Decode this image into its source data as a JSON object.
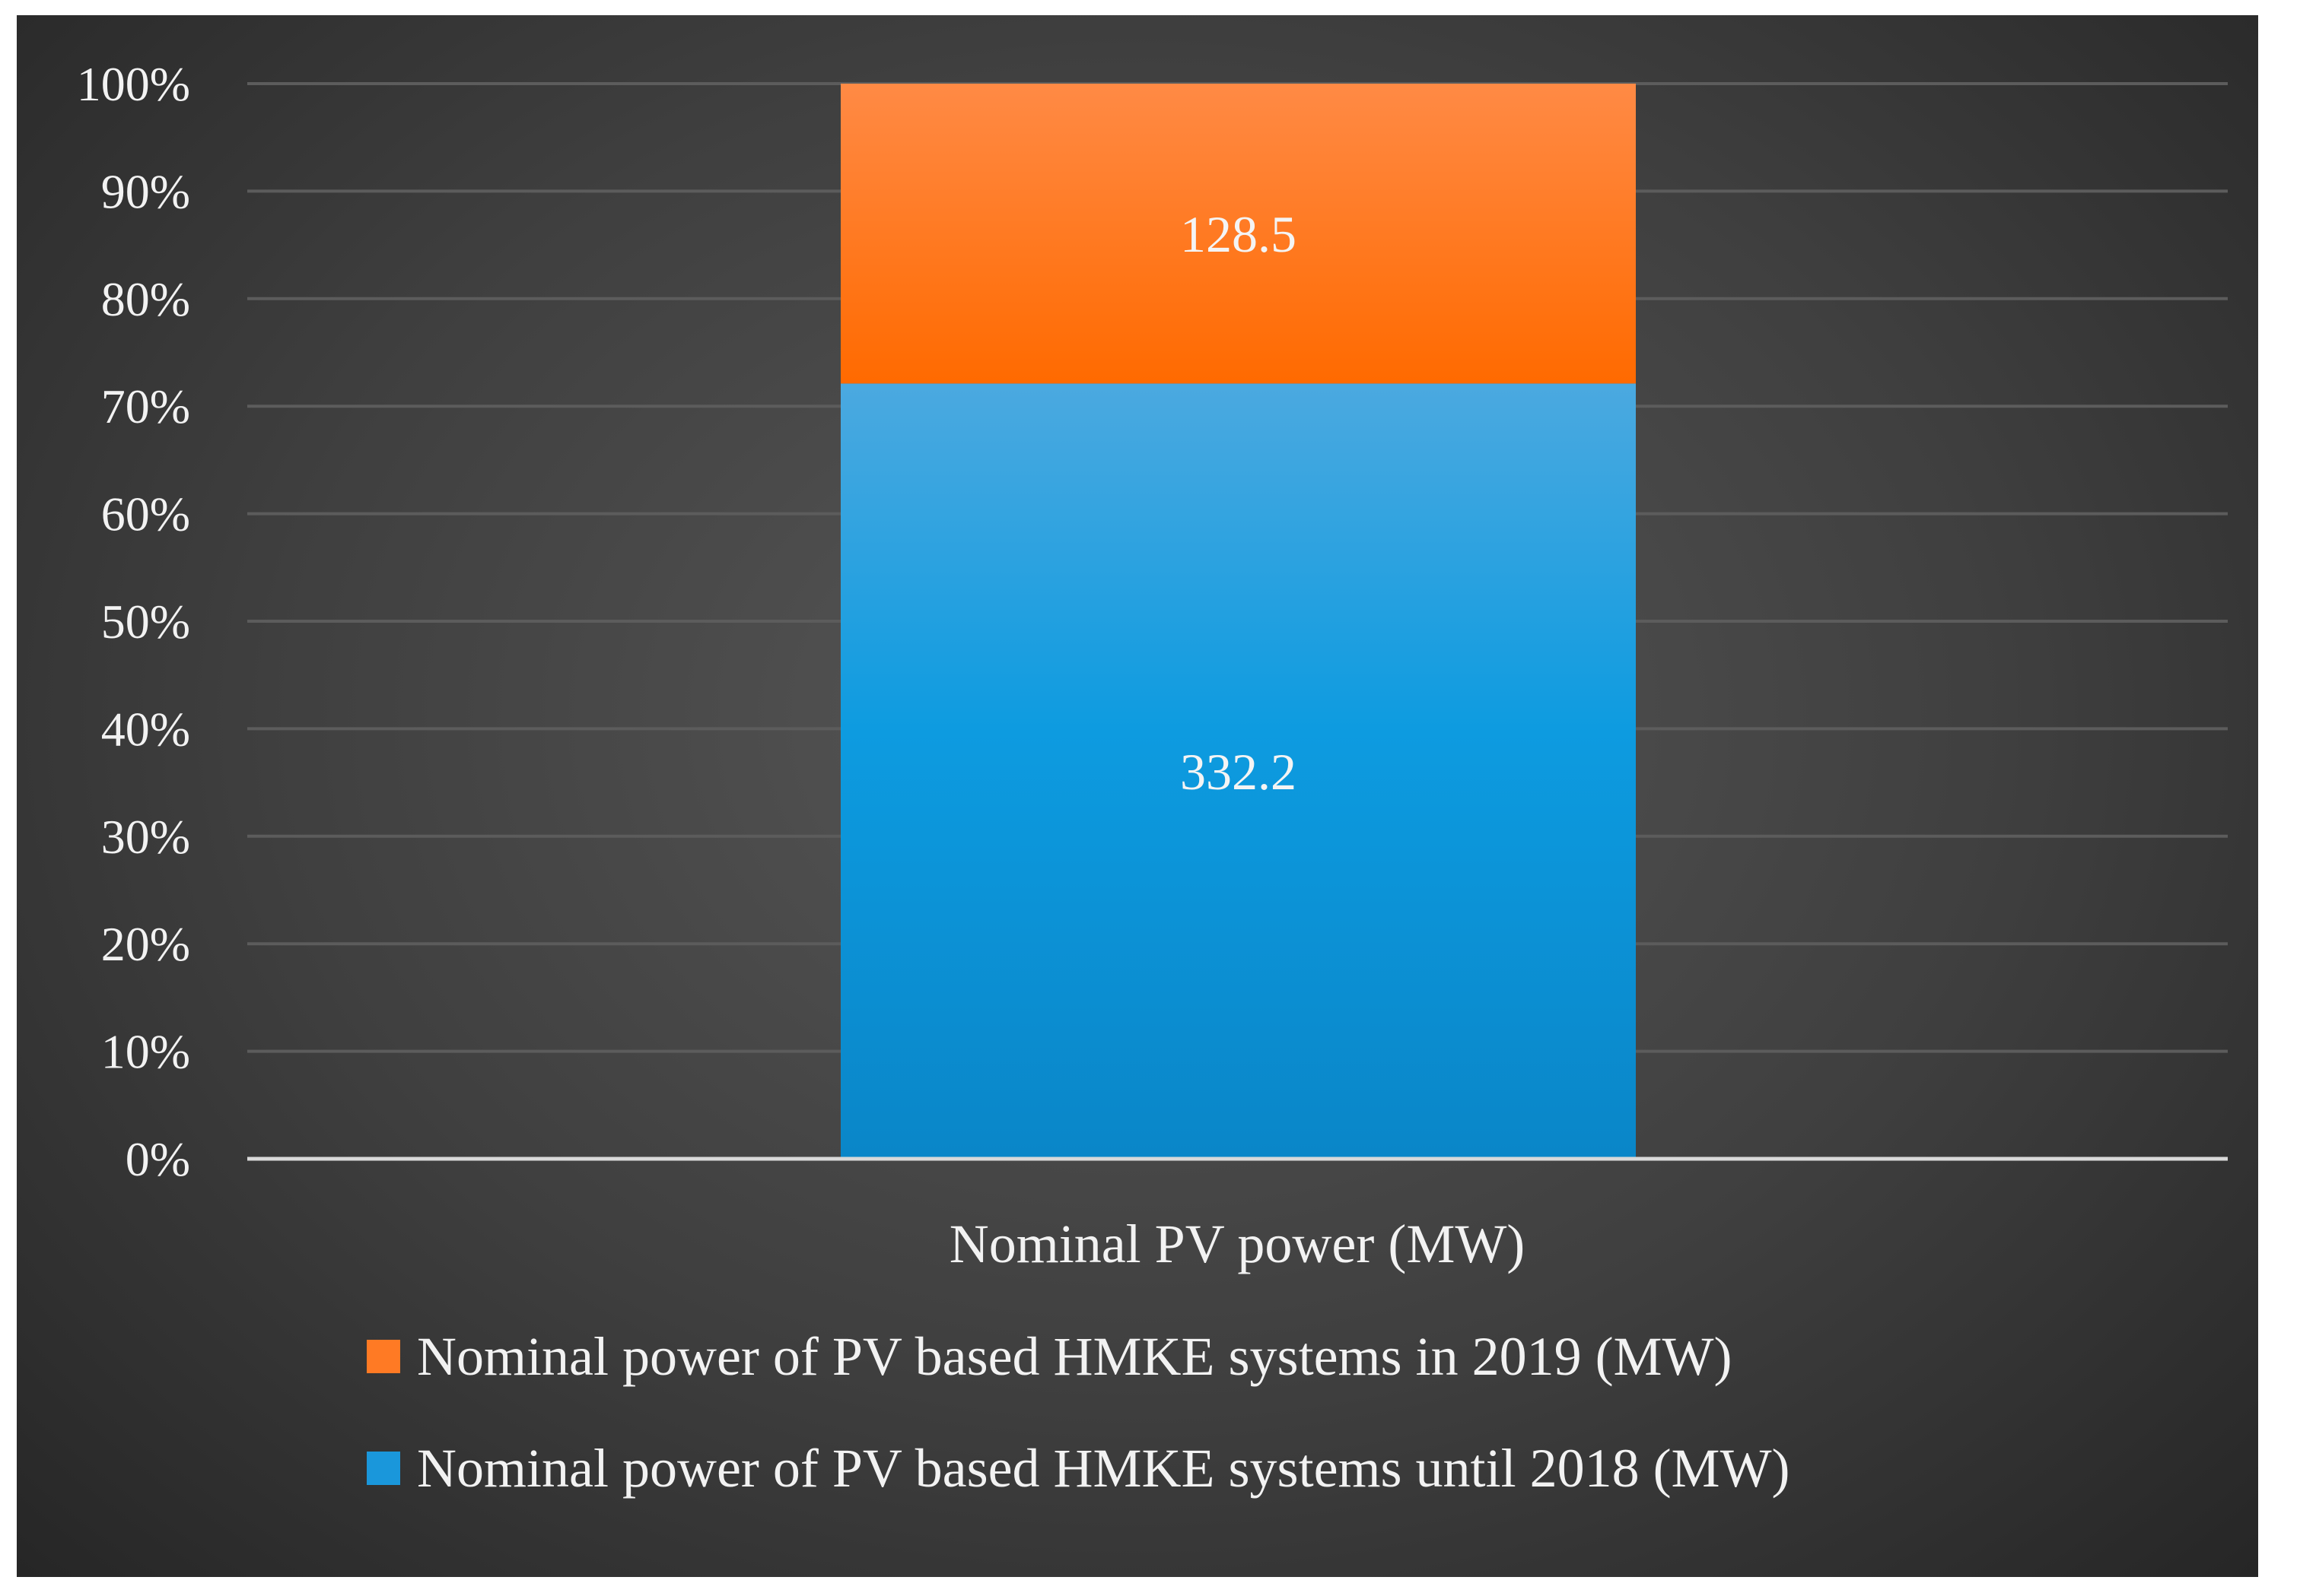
{
  "chart_data": {
    "type": "bar",
    "stacked": true,
    "normalized": true,
    "title": "",
    "xlabel": "",
    "ylabel": "",
    "categories": [
      "Nominal PV power (MW)"
    ],
    "ylim": [
      0,
      100
    ],
    "y_ticks": [
      "0%",
      "10%",
      "20%",
      "30%",
      "40%",
      "50%",
      "60%",
      "70%",
      "80%",
      "90%",
      "100%"
    ],
    "series": [
      {
        "name": "Nominal power of PV based HMKE systems until 2018 (MW)",
        "values": [
          332.2
        ],
        "label": "332.2",
        "color": "#0f92d6"
      },
      {
        "name": "Nominal power of PV based HMKE systems in 2019 (MW)",
        "values": [
          128.5
        ],
        "label": "128.5",
        "color": "#ff7a1a"
      }
    ],
    "legend_position": "bottom",
    "legend_order": [
      1,
      0
    ],
    "grid": true
  },
  "colors": {
    "background": "#3f3f3f",
    "gridline": "#5c5c5c",
    "axis": "#d9d9d9",
    "text": "#f2f2f2"
  }
}
